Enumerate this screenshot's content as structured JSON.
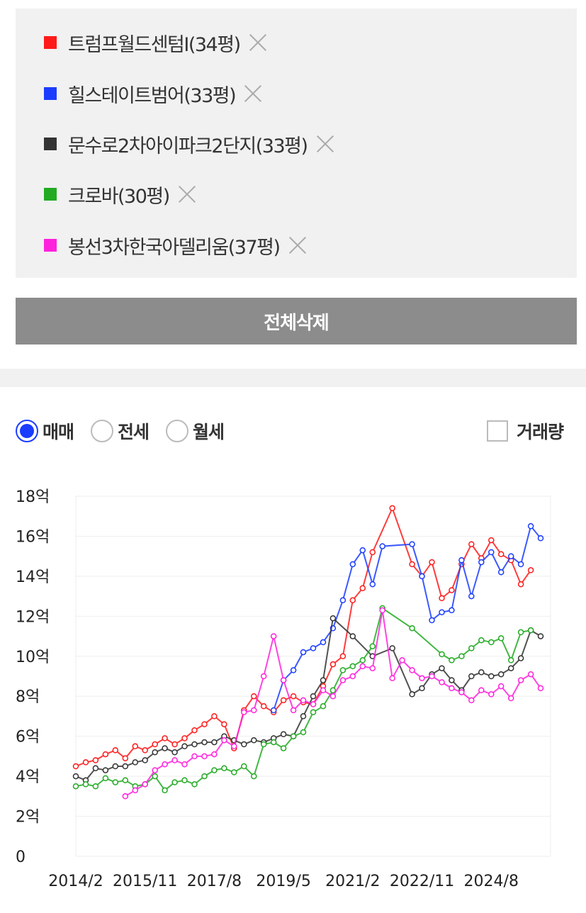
{
  "legend": {
    "items": [
      {
        "label": "트럼프월드센텀I(34평)",
        "color": "#ff1a1a"
      },
      {
        "label": "힐스테이트범어(33평)",
        "color": "#1a3cff"
      },
      {
        "label": "문수로2차아이파크2단지(33평)",
        "color": "#333333"
      },
      {
        "label": "크로바(30평)",
        "color": "#22aa22"
      },
      {
        "label": "봉선3차한국아델리움(37평)",
        "color": "#ff22dd"
      }
    ],
    "remove_icon": "close-icon"
  },
  "delete_all_label": "전체삭제",
  "trade_types": [
    {
      "label": "매매",
      "selected": true
    },
    {
      "label": "전세",
      "selected": false
    },
    {
      "label": "월세",
      "selected": false
    }
  ],
  "volume_label": "거래량",
  "volume_checked": false,
  "chart_data": {
    "type": "line",
    "title": "",
    "xlabel": "",
    "ylabel": "",
    "x_ticks": [
      "2014/2",
      "2015/11",
      "2017/8",
      "2019/5",
      "2021/2",
      "2022/11",
      "2024/8"
    ],
    "y_ticks": [
      "0",
      "2억",
      "4억",
      "6억",
      "8억",
      "10억",
      "12억",
      "14억",
      "16억",
      "18억"
    ],
    "ylim": [
      0,
      18
    ],
    "xlim": [
      "2014/2",
      "2026/2"
    ],
    "y_unit": "억",
    "grid": "horizontal",
    "legend": "top (separate list)",
    "series": [
      {
        "name": "트럼프월드센텀I(34평)",
        "color": "#ff1a1a",
        "points": [
          [
            "2014/2",
            4.5
          ],
          [
            "2014/5",
            4.7
          ],
          [
            "2014/8",
            4.8
          ],
          [
            "2014/11",
            5.1
          ],
          [
            "2015/2",
            5.3
          ],
          [
            "2015/5",
            4.9
          ],
          [
            "2015/8",
            5.5
          ],
          [
            "2015/11",
            5.3
          ],
          [
            "2016/2",
            5.6
          ],
          [
            "2016/5",
            5.9
          ],
          [
            "2016/8",
            5.6
          ],
          [
            "2016/11",
            5.9
          ],
          [
            "2017/2",
            6.3
          ],
          [
            "2017/5",
            6.6
          ],
          [
            "2017/8",
            7.0
          ],
          [
            "2017/11",
            6.6
          ],
          [
            "2018/2",
            5.4
          ],
          [
            "2018/5",
            7.3
          ],
          [
            "2018/8",
            8.0
          ],
          [
            "2018/11",
            7.5
          ],
          [
            "2019/2",
            7.2
          ],
          [
            "2019/5",
            7.8
          ],
          [
            "2019/8",
            8.0
          ],
          [
            "2019/11",
            7.7
          ],
          [
            "2020/2",
            7.6
          ],
          [
            "2020/5",
            8.5
          ],
          [
            "2020/8",
            9.6
          ],
          [
            "2020/11",
            10.0
          ],
          [
            "2021/2",
            12.8
          ],
          [
            "2021/5",
            13.4
          ],
          [
            "2021/8",
            15.2
          ],
          [
            "2022/2",
            17.4
          ],
          [
            "2022/8",
            14.6
          ],
          [
            "2022/11",
            14.0
          ],
          [
            "2023/2",
            14.7
          ],
          [
            "2023/5",
            12.9
          ],
          [
            "2023/8",
            13.3
          ],
          [
            "2023/11",
            14.6
          ],
          [
            "2024/2",
            15.6
          ],
          [
            "2024/5",
            14.9
          ],
          [
            "2024/8",
            15.8
          ],
          [
            "2024/11",
            15.1
          ],
          [
            "2025/2",
            14.8
          ],
          [
            "2025/5",
            13.6
          ],
          [
            "2025/8",
            14.3
          ]
        ]
      },
      {
        "name": "힐스테이트범어(33평)",
        "color": "#1a3cff",
        "points": [
          [
            "2019/2",
            7.3
          ],
          [
            "2019/5",
            8.8
          ],
          [
            "2019/8",
            9.3
          ],
          [
            "2019/11",
            10.2
          ],
          [
            "2020/2",
            10.4
          ],
          [
            "2020/5",
            10.7
          ],
          [
            "2020/8",
            11.4
          ],
          [
            "2020/11",
            12.8
          ],
          [
            "2021/2",
            14.6
          ],
          [
            "2021/5",
            15.3
          ],
          [
            "2021/8",
            13.6
          ],
          [
            "2021/11",
            15.5
          ],
          [
            "2022/8",
            15.6
          ],
          [
            "2022/11",
            14.0
          ],
          [
            "2023/2",
            11.8
          ],
          [
            "2023/5",
            12.2
          ],
          [
            "2023/8",
            12.3
          ],
          [
            "2023/11",
            14.8
          ],
          [
            "2024/2",
            13.0
          ],
          [
            "2024/5",
            14.7
          ],
          [
            "2024/8",
            15.2
          ],
          [
            "2024/11",
            14.2
          ],
          [
            "2025/2",
            15.0
          ],
          [
            "2025/5",
            14.6
          ],
          [
            "2025/8",
            16.5
          ],
          [
            "2025/11",
            15.9
          ]
        ]
      },
      {
        "name": "문수로2차아이파크2단지(33평)",
        "color": "#333333",
        "points": [
          [
            "2014/2",
            4.0
          ],
          [
            "2014/5",
            3.8
          ],
          [
            "2014/8",
            4.4
          ],
          [
            "2014/11",
            4.3
          ],
          [
            "2015/2",
            4.5
          ],
          [
            "2015/5",
            4.5
          ],
          [
            "2015/8",
            4.7
          ],
          [
            "2015/11",
            4.8
          ],
          [
            "2016/2",
            5.2
          ],
          [
            "2016/5",
            5.4
          ],
          [
            "2016/8",
            5.2
          ],
          [
            "2016/11",
            5.5
          ],
          [
            "2017/2",
            5.6
          ],
          [
            "2017/5",
            5.7
          ],
          [
            "2017/8",
            5.7
          ],
          [
            "2017/11",
            6.0
          ],
          [
            "2018/2",
            5.8
          ],
          [
            "2018/5",
            5.6
          ],
          [
            "2018/8",
            5.8
          ],
          [
            "2018/11",
            5.7
          ],
          [
            "2019/2",
            5.9
          ],
          [
            "2019/5",
            6.1
          ],
          [
            "2019/8",
            6.0
          ],
          [
            "2019/11",
            7.0
          ],
          [
            "2020/2",
            8.0
          ],
          [
            "2020/5",
            8.8
          ],
          [
            "2020/8",
            11.9
          ],
          [
            "2021/2",
            11.0
          ],
          [
            "2021/8",
            10.0
          ],
          [
            "2022/2",
            10.4
          ],
          [
            "2022/8",
            8.1
          ],
          [
            "2022/11",
            8.4
          ],
          [
            "2023/2",
            9.1
          ],
          [
            "2023/5",
            9.4
          ],
          [
            "2023/8",
            8.8
          ],
          [
            "2023/11",
            8.3
          ],
          [
            "2024/2",
            9.0
          ],
          [
            "2024/5",
            9.2
          ],
          [
            "2024/8",
            9.0
          ],
          [
            "2024/11",
            9.1
          ],
          [
            "2025/2",
            9.4
          ],
          [
            "2025/5",
            9.9
          ],
          [
            "2025/8",
            11.3
          ],
          [
            "2025/11",
            11.0
          ]
        ]
      },
      {
        "name": "크로바(30평)",
        "color": "#22aa22",
        "points": [
          [
            "2014/2",
            3.5
          ],
          [
            "2014/5",
            3.6
          ],
          [
            "2014/8",
            3.5
          ],
          [
            "2014/11",
            3.9
          ],
          [
            "2015/2",
            3.7
          ],
          [
            "2015/5",
            3.8
          ],
          [
            "2015/8",
            3.5
          ],
          [
            "2015/11",
            3.6
          ],
          [
            "2016/2",
            4.0
          ],
          [
            "2016/5",
            3.3
          ],
          [
            "2016/8",
            3.7
          ],
          [
            "2016/11",
            3.8
          ],
          [
            "2017/2",
            3.6
          ],
          [
            "2017/5",
            4.0
          ],
          [
            "2017/8",
            4.3
          ],
          [
            "2017/11",
            4.4
          ],
          [
            "2018/2",
            4.2
          ],
          [
            "2018/5",
            4.5
          ],
          [
            "2018/8",
            4.0
          ],
          [
            "2018/11",
            5.6
          ],
          [
            "2019/2",
            5.7
          ],
          [
            "2019/5",
            5.4
          ],
          [
            "2019/8",
            6.0
          ],
          [
            "2019/11",
            6.2
          ],
          [
            "2020/2",
            7.2
          ],
          [
            "2020/5",
            7.5
          ],
          [
            "2020/8",
            8.3
          ],
          [
            "2020/11",
            9.3
          ],
          [
            "2021/2",
            9.5
          ],
          [
            "2021/5",
            9.8
          ],
          [
            "2021/8",
            10.5
          ],
          [
            "2021/11",
            12.4
          ],
          [
            "2022/8",
            11.4
          ],
          [
            "2023/5",
            10.1
          ],
          [
            "2023/8",
            9.8
          ],
          [
            "2023/11",
            10.0
          ],
          [
            "2024/2",
            10.4
          ],
          [
            "2024/5",
            10.8
          ],
          [
            "2024/8",
            10.7
          ],
          [
            "2024/11",
            10.9
          ],
          [
            "2025/2",
            9.8
          ],
          [
            "2025/5",
            11.2
          ],
          [
            "2025/8",
            11.3
          ]
        ]
      },
      {
        "name": "봉선3차한국아델리움(37평)",
        "color": "#ff22dd",
        "points": [
          [
            "2015/5",
            3.0
          ],
          [
            "2015/8",
            3.3
          ],
          [
            "2015/11",
            3.6
          ],
          [
            "2016/2",
            4.3
          ],
          [
            "2016/5",
            4.6
          ],
          [
            "2016/8",
            4.8
          ],
          [
            "2016/11",
            4.6
          ],
          [
            "2017/2",
            5.0
          ],
          [
            "2017/5",
            5.0
          ],
          [
            "2017/8",
            5.1
          ],
          [
            "2017/11",
            5.8
          ],
          [
            "2018/2",
            5.5
          ],
          [
            "2018/5",
            7.2
          ],
          [
            "2018/8",
            7.3
          ],
          [
            "2018/11",
            9.0
          ],
          [
            "2019/2",
            11.0
          ],
          [
            "2019/5",
            8.8
          ],
          [
            "2019/8",
            7.3
          ],
          [
            "2019/11",
            7.8
          ],
          [
            "2020/2",
            7.6
          ],
          [
            "2020/5",
            8.3
          ],
          [
            "2020/8",
            8.0
          ],
          [
            "2020/11",
            8.8
          ],
          [
            "2021/2",
            9.0
          ],
          [
            "2021/5",
            9.5
          ],
          [
            "2021/8",
            9.4
          ],
          [
            "2021/11",
            12.3
          ],
          [
            "2022/2",
            8.9
          ],
          [
            "2022/5",
            9.8
          ],
          [
            "2022/8",
            9.3
          ],
          [
            "2022/11",
            8.9
          ],
          [
            "2023/2",
            9.0
          ],
          [
            "2023/5",
            8.7
          ],
          [
            "2023/8",
            8.4
          ],
          [
            "2023/11",
            8.2
          ],
          [
            "2024/2",
            7.8
          ],
          [
            "2024/5",
            8.3
          ],
          [
            "2024/8",
            8.1
          ],
          [
            "2024/11",
            8.5
          ],
          [
            "2025/2",
            7.9
          ],
          [
            "2025/5",
            8.8
          ],
          [
            "2025/8",
            9.1
          ],
          [
            "2025/11",
            8.4
          ]
        ]
      }
    ]
  }
}
